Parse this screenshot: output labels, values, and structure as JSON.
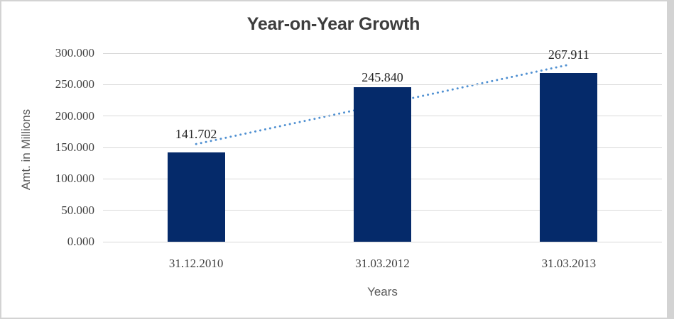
{
  "chart_data": {
    "type": "bar",
    "title": "Year-on-Year Growth",
    "categories": [
      "31.12.2010",
      "31.03.2012",
      "31.03.2013"
    ],
    "values": [
      141.702,
      245.84,
      267.911
    ],
    "data_labels": [
      "141.702",
      "245.840",
      "267.911"
    ],
    "xlabel": "Years",
    "ylabel": "Amt. in Millions",
    "ylim": [
      0,
      300
    ],
    "yticks": [
      {
        "value": 300,
        "label": "300.000"
      },
      {
        "value": 250,
        "label": "250.000"
      },
      {
        "value": 200,
        "label": "200.000"
      },
      {
        "value": 150,
        "label": "150.000"
      },
      {
        "value": 100,
        "label": "100.000"
      },
      {
        "value": 50,
        "label": "50.000"
      },
      {
        "value": 0,
        "label": "0.000"
      }
    ],
    "grid": true,
    "legend": "none",
    "trendline": {
      "type": "linear",
      "style": "dotted"
    },
    "colors": {
      "bar": "#052a6a",
      "gridline": "#d9d9d9",
      "trend": "#5191d2",
      "title_text": "#3d3d3d",
      "axis_title_text": "#595959",
      "tick_text": "#404040",
      "data_label_text": "#262626",
      "frame_border": "#d3d3d3"
    }
  }
}
